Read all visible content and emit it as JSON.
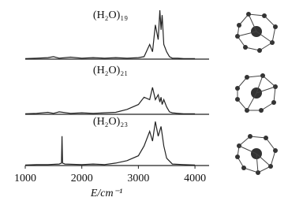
{
  "chart_data": {
    "type": "line",
    "x_label": "E/cm⁻¹",
    "xlim": [
      1000,
      4250
    ],
    "xticks": [
      1000,
      2000,
      3000,
      4000
    ],
    "ylim": [
      0,
      1
    ],
    "series": [
      {
        "name": "(H₂O)₁₉",
        "color": "#222222",
        "x": [
          1000,
          1200,
          1400,
          1500,
          1600,
          1800,
          2000,
          2200,
          2400,
          2600,
          2800,
          3000,
          3100,
          3200,
          3250,
          3300,
          3350,
          3380,
          3400,
          3420,
          3450,
          3500,
          3550,
          3600,
          3700,
          3800,
          4000
        ],
        "values": [
          0.01,
          0.02,
          0.03,
          0.05,
          0.02,
          0.04,
          0.02,
          0.03,
          0.02,
          0.03,
          0.02,
          0.03,
          0.05,
          0.3,
          0.15,
          0.7,
          0.4,
          1.0,
          0.6,
          0.9,
          0.3,
          0.15,
          0.05,
          0.02,
          0.02,
          0.01,
          0.01
        ]
      },
      {
        "name": "(H₂O)₂₁",
        "color": "#222222",
        "x": [
          1000,
          1200,
          1400,
          1500,
          1600,
          1800,
          2000,
          2200,
          2400,
          2600,
          2800,
          3000,
          3100,
          3200,
          3250,
          3300,
          3350,
          3380,
          3400,
          3420,
          3450,
          3500,
          3550,
          3600,
          3700,
          3800,
          4000
        ],
        "values": [
          0.01,
          0.02,
          0.04,
          0.02,
          0.05,
          0.02,
          0.03,
          0.02,
          0.03,
          0.04,
          0.1,
          0.2,
          0.35,
          0.3,
          0.55,
          0.3,
          0.4,
          0.25,
          0.35,
          0.2,
          0.3,
          0.15,
          0.05,
          0.03,
          0.02,
          0.01,
          0.01
        ]
      },
      {
        "name": "(H₂O)₂₃",
        "color": "#222222",
        "x": [
          1000,
          1200,
          1400,
          1600,
          1640,
          1650,
          1660,
          1700,
          2000,
          2200,
          2400,
          2600,
          2800,
          3000,
          3100,
          3200,
          3250,
          3300,
          3350,
          3400,
          3450,
          3500,
          3600,
          3800,
          4000
        ],
        "values": [
          0.01,
          0.02,
          0.02,
          0.03,
          0.05,
          0.6,
          0.05,
          0.03,
          0.02,
          0.03,
          0.02,
          0.05,
          0.1,
          0.2,
          0.4,
          0.7,
          0.5,
          0.9,
          0.6,
          0.8,
          0.4,
          0.15,
          0.03,
          0.02,
          0.01
        ]
      }
    ]
  }
}
